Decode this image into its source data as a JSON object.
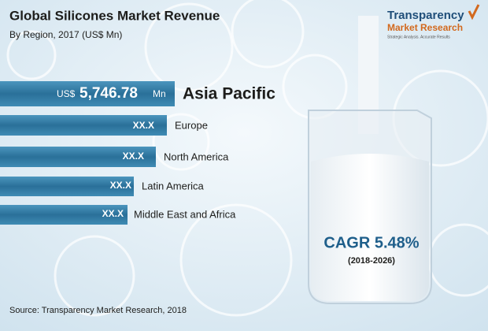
{
  "header": {
    "title": "Global Silicones Market Revenue",
    "subtitle": "By Region, 2017 (US$ Mn)"
  },
  "logo": {
    "name": "Transparency",
    "line2": "Market Research",
    "tagline": "Strategic Analysis. Accurate Results"
  },
  "bars": [
    {
      "label": "Asia Pacific",
      "prefix": "US$",
      "value": "5,746.78",
      "unit": "Mn"
    },
    {
      "label": "Europe",
      "value": "XX.X"
    },
    {
      "label": "North America",
      "value": "XX.X"
    },
    {
      "label": "Latin America",
      "value": "XX.X"
    },
    {
      "label": "Middle East and Africa",
      "value": "XX.X"
    }
  ],
  "cagr": {
    "text": "CAGR 5.48%",
    "period": "(2018-2026)"
  },
  "source": "Source: Transparency Market Research, 2018"
}
